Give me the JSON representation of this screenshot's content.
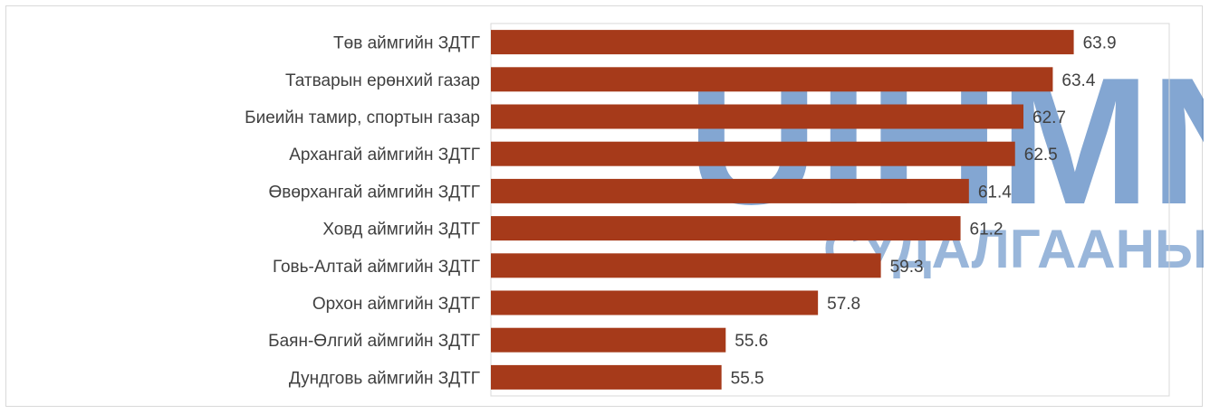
{
  "watermark": {
    "main": "UIHMN",
    "sub": "СУДАЛГААНЫ САН"
  },
  "colors": {
    "bar": "#a63a1a",
    "plot_border": "#d9d9d9",
    "text": "#404040"
  },
  "chart_data": {
    "type": "bar",
    "orientation": "horizontal",
    "title": "",
    "xlabel": "",
    "ylabel": "",
    "categories": [
      "Төв аймгийн ЗДТГ",
      "Татварын ерөнхий газар",
      "Биеийн тамир, спортын газар",
      "Архангай аймгийн ЗДТГ",
      "Өвөрхангай аймгийн ЗДТГ",
      "Ховд аймгийн ЗДТГ",
      "Говь-Алтай аймгийн ЗДТГ",
      "Орхон аймгийн ЗДТГ",
      "Баян-Өлгий аймгийн ЗДТГ",
      "Дундговь аймгийн ЗДТГ"
    ],
    "values": [
      63.9,
      63.4,
      62.7,
      62.5,
      61.4,
      61.2,
      59.3,
      57.8,
      55.6,
      55.5
    ],
    "value_labels": [
      "63.9",
      "63.4",
      "62.7",
      "62.5",
      "61.4",
      "61.2",
      "59.3",
      "57.8",
      "55.6",
      "55.5"
    ],
    "xlim": [
      50,
      66
    ],
    "grid": false,
    "legend": "none",
    "data_labels": true
  }
}
